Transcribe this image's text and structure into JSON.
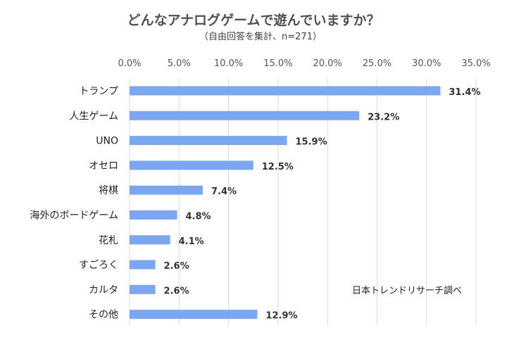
{
  "chart_data": {
    "type": "bar",
    "orientation": "horizontal",
    "title": "どんなアナログゲームで遊んでいますか？",
    "subtitle": "（自由回答を集計、n=271）",
    "categories": [
      "トランプ",
      "人生ゲーム",
      "UNO",
      "オセロ",
      "将棋",
      "海外のボードゲーム",
      "花札",
      "すごろく",
      "カルタ",
      "その他"
    ],
    "values": [
      31.4,
      23.2,
      15.9,
      12.5,
      7.4,
      4.8,
      4.1,
      2.6,
      2.6,
      12.9
    ],
    "data_labels": [
      "31.4%",
      "23.2%",
      "15.9%",
      "12.5%",
      "7.4%",
      "4.8%",
      "4.1%",
      "2.6%",
      "2.6%",
      "12.9%"
    ],
    "xlim": [
      0,
      35
    ],
    "x_ticks": [
      "0.0%",
      "5.0%",
      "10.0%",
      "15.0%",
      "20.0%",
      "25.0%",
      "30.0%",
      "35.0%"
    ],
    "x_axis_position": "top",
    "grid": true,
    "bar_color": "#7BA7F0",
    "source": "日本トレンドリサーチ調べ"
  }
}
